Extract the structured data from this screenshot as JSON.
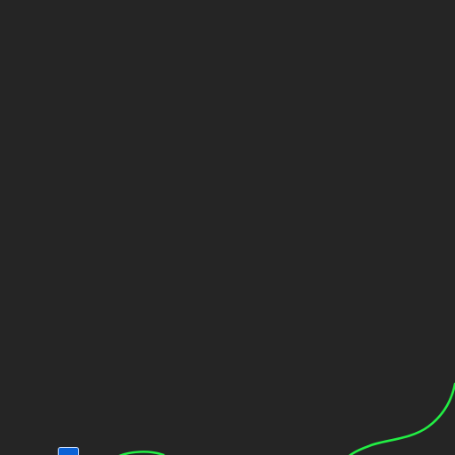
{
  "canvas": {
    "background": "#252525"
  },
  "curve": {
    "color": "#22ee44",
    "icon": "curve-path"
  },
  "handle": {
    "color": "#0b62d6",
    "border_color": "#d8e6ff",
    "icon": "control-point-handle"
  }
}
